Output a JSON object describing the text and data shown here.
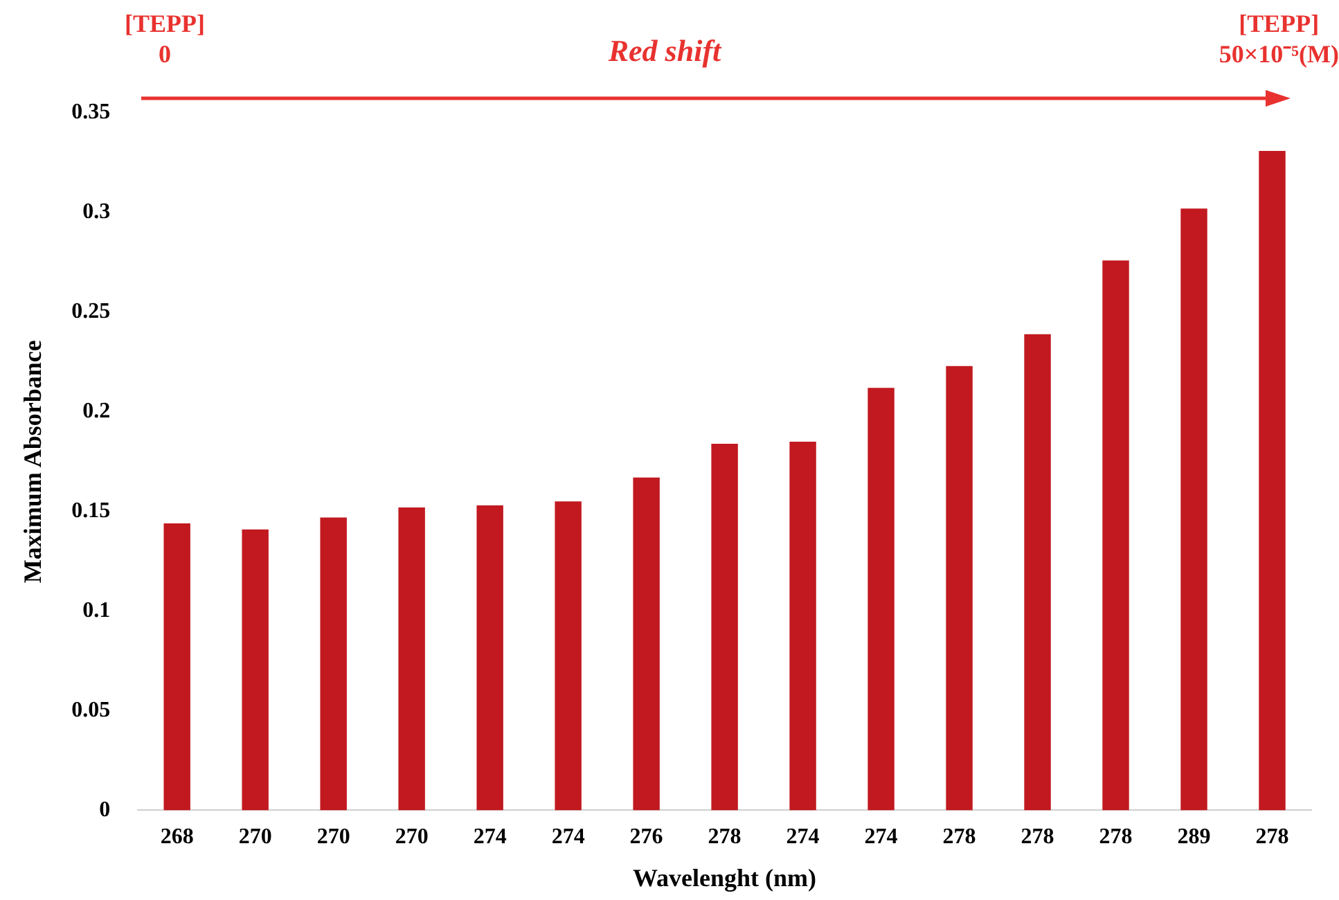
{
  "chart_data": {
    "type": "bar",
    "xlabel": "Wavelenght (nm)",
    "ylabel": "Maximum Absorbance",
    "categories": [
      "268",
      "270",
      "270",
      "270",
      "274",
      "274",
      "276",
      "278",
      "274",
      "274",
      "278",
      "278",
      "278",
      "289",
      "278"
    ],
    "values": [
      0.144,
      0.141,
      0.147,
      0.152,
      0.153,
      0.155,
      0.167,
      0.184,
      0.185,
      0.212,
      0.223,
      0.239,
      0.276,
      0.302,
      0.331
    ],
    "color": "#c1191f",
    "ylim": [
      0,
      0.35
    ],
    "yticks": [
      0,
      0.05,
      0.1,
      0.15,
      0.2,
      0.25,
      0.3,
      0.35
    ],
    "annotations": [
      "[TEPP]\n0",
      "Red shift",
      "[TEPP]\n50×10⁻⁵(M)"
    ]
  }
}
